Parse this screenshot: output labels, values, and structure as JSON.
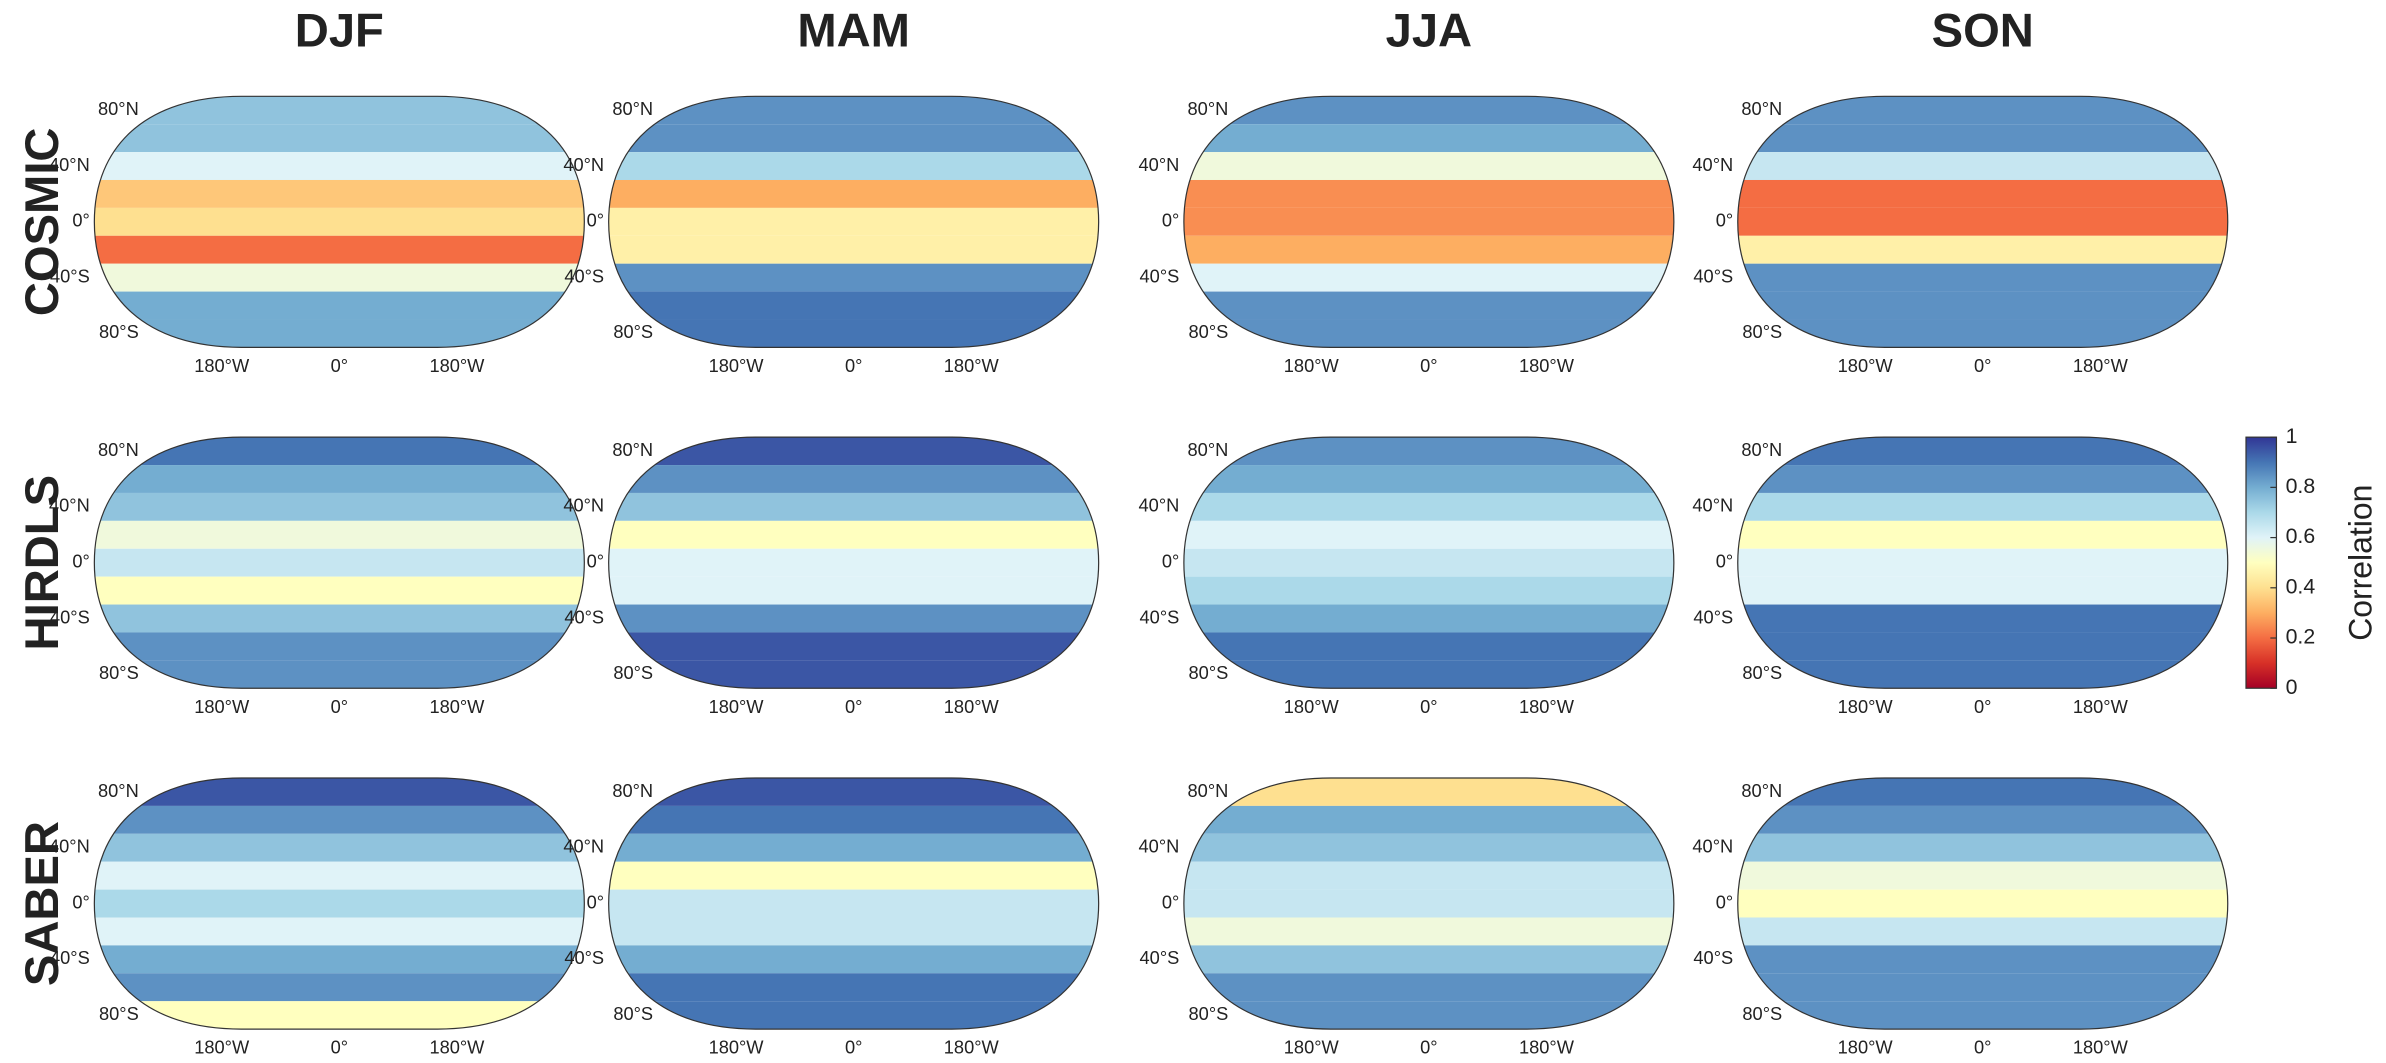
{
  "chart_data": {
    "type": "map",
    "columns": [
      "DJF",
      "MAM",
      "JJA",
      "SON"
    ],
    "rows": [
      "COSMIC",
      "HIRDLS",
      "SABER"
    ],
    "latitudes": [
      80,
      60,
      40,
      20,
      0,
      -20,
      -40,
      -60,
      -80
    ],
    "lat_ticks": [
      {
        "value": 80,
        "label": "80°N"
      },
      {
        "value": 40,
        "label": "40°N"
      },
      {
        "value": 0,
        "label": "0°"
      },
      {
        "value": -40,
        "label": "40°S"
      },
      {
        "value": -80,
        "label": "80°S"
      }
    ],
    "lon_ticks": [
      {
        "value": -180,
        "label": "180°W"
      },
      {
        "value": 0,
        "label": "0°"
      },
      {
        "value": 180,
        "label": "180°W"
      }
    ],
    "panels": [
      [
        [
          0.75,
          0.75,
          0.6,
          0.35,
          0.4,
          0.2,
          0.55,
          0.8,
          0.8
        ],
        [
          0.85,
          0.85,
          0.7,
          0.3,
          0.45,
          0.45,
          0.85,
          0.9,
          0.9
        ],
        [
          0.85,
          0.8,
          0.55,
          0.25,
          0.25,
          0.3,
          0.6,
          0.85,
          0.85
        ],
        [
          0.85,
          0.85,
          0.65,
          0.2,
          0.2,
          0.45,
          0.85,
          0.85,
          0.85
        ]
      ],
      [
        [
          0.9,
          0.8,
          0.75,
          0.55,
          0.65,
          0.5,
          0.75,
          0.85,
          0.85
        ],
        [
          0.95,
          0.85,
          0.75,
          0.5,
          0.6,
          0.6,
          0.85,
          0.95,
          0.95
        ],
        [
          0.85,
          0.8,
          0.7,
          0.6,
          0.65,
          0.7,
          0.8,
          0.9,
          0.9
        ],
        [
          0.9,
          0.85,
          0.7,
          0.5,
          0.6,
          0.6,
          0.9,
          0.9,
          0.9
        ]
      ],
      [
        [
          0.95,
          0.85,
          0.75,
          0.6,
          0.7,
          0.6,
          0.8,
          0.85,
          0.5
        ],
        [
          0.95,
          0.9,
          0.8,
          0.5,
          0.65,
          0.65,
          0.8,
          0.9,
          0.9
        ],
        [
          0.4,
          0.8,
          0.75,
          0.65,
          0.65,
          0.55,
          0.75,
          0.85,
          0.85
        ],
        [
          0.9,
          0.85,
          0.75,
          0.55,
          0.5,
          0.65,
          0.85,
          0.85,
          0.85
        ]
      ]
    ],
    "colorbar": {
      "label": "Correlation",
      "lim": [
        0,
        1
      ],
      "ticks": [
        0,
        0.2,
        0.4,
        0.6,
        0.8,
        1
      ],
      "colors": [
        "#a50026",
        "#d73027",
        "#f46d43",
        "#fdae61",
        "#fee090",
        "#ffffbf",
        "#e0f3f8",
        "#abd9e9",
        "#74add1",
        "#4575b4",
        "#313695"
      ]
    }
  }
}
